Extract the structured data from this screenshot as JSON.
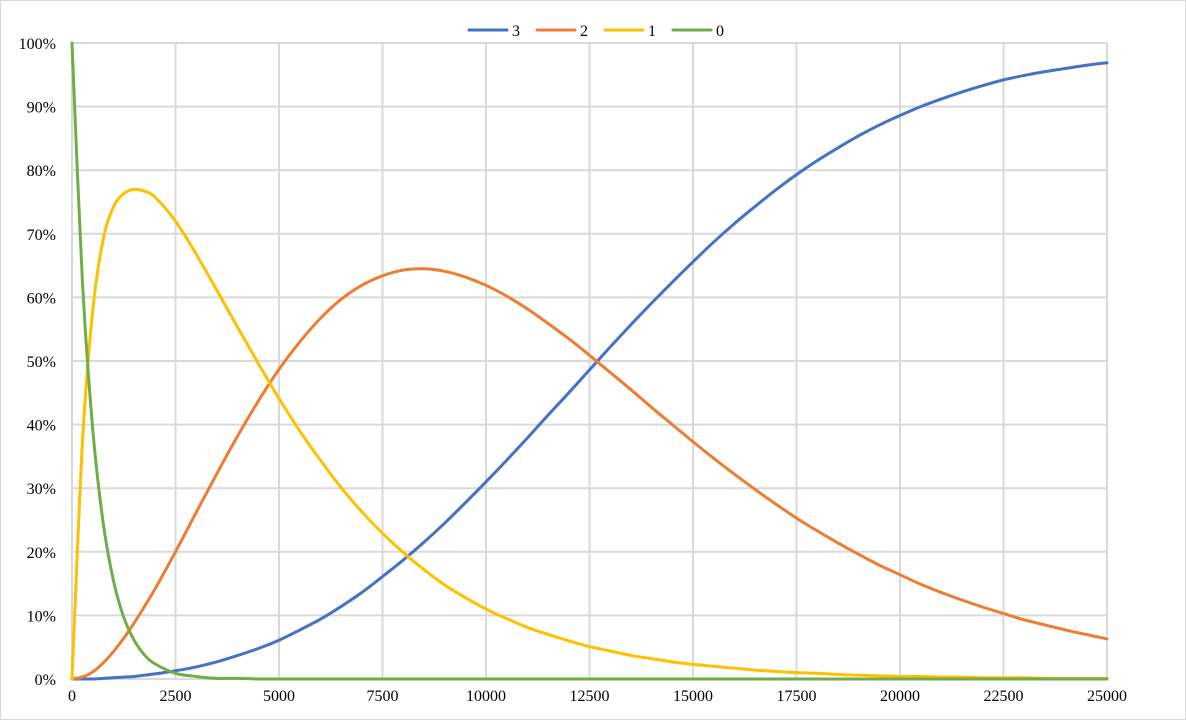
{
  "chart_data": {
    "type": "line",
    "title": "",
    "xlabel": "",
    "ylabel": "",
    "xlim": [
      0,
      25000
    ],
    "ylim": [
      0,
      1
    ],
    "x_ticks": [
      "0",
      "2500",
      "5000",
      "7500",
      "10000",
      "12500",
      "15000",
      "17500",
      "20000",
      "22500",
      "25000"
    ],
    "y_ticks": [
      "0%",
      "10%",
      "20%",
      "30%",
      "40%",
      "50%",
      "60%",
      "70%",
      "80%",
      "90%",
      "100%"
    ],
    "grid": true,
    "legend_position": "top-center",
    "x": [
      0,
      250,
      500,
      750,
      1000,
      1250,
      1500,
      1750,
      2000,
      2500,
      3000,
      3500,
      4000,
      4500,
      5000,
      5500,
      6000,
      6500,
      7000,
      7500,
      8000,
      8500,
      9000,
      9500,
      10000,
      10500,
      11000,
      11500,
      12000,
      12500,
      13000,
      13500,
      14000,
      14500,
      15000,
      15500,
      16000,
      16500,
      17000,
      17500,
      18000,
      18500,
      19000,
      19500,
      20000,
      20500,
      21000,
      21500,
      22000,
      22500,
      23000,
      23500,
      24000,
      24500,
      25000
    ],
    "series": [
      {
        "name": "3",
        "color": "#4472c4",
        "values": [
          0.0,
          0.0,
          0.0,
          0.001,
          0.002,
          0.003,
          0.004,
          0.006,
          0.008,
          0.013,
          0.019,
          0.027,
          0.037,
          0.048,
          0.061,
          0.077,
          0.094,
          0.114,
          0.136,
          0.161,
          0.187,
          0.215,
          0.245,
          0.277,
          0.31,
          0.344,
          0.379,
          0.415,
          0.45,
          0.486,
          0.522,
          0.557,
          0.591,
          0.624,
          0.656,
          0.687,
          0.716,
          0.743,
          0.769,
          0.793,
          0.815,
          0.835,
          0.854,
          0.871,
          0.886,
          0.9,
          0.912,
          0.923,
          0.933,
          0.942,
          0.949,
          0.955,
          0.96,
          0.965,
          0.969
        ]
      },
      {
        "name": "2",
        "color": "#ed7d31",
        "values": [
          0.0,
          0.003,
          0.011,
          0.025,
          0.043,
          0.064,
          0.088,
          0.114,
          0.141,
          0.2,
          0.262,
          0.323,
          0.382,
          0.437,
          0.487,
          0.53,
          0.567,
          0.597,
          0.619,
          0.634,
          0.643,
          0.645,
          0.641,
          0.632,
          0.619,
          0.602,
          0.582,
          0.559,
          0.535,
          0.509,
          0.482,
          0.455,
          0.427,
          0.4,
          0.373,
          0.347,
          0.322,
          0.298,
          0.275,
          0.253,
          0.233,
          0.214,
          0.196,
          0.179,
          0.164,
          0.149,
          0.136,
          0.124,
          0.113,
          0.103,
          0.093,
          0.085,
          0.077,
          0.07,
          0.063
        ]
      },
      {
        "name": "1",
        "color": "#ffc000",
        "values": [
          0.0,
          0.369,
          0.579,
          0.69,
          0.742,
          0.763,
          0.77,
          0.767,
          0.758,
          0.72,
          0.668,
          0.611,
          0.553,
          0.496,
          0.441,
          0.39,
          0.344,
          0.301,
          0.263,
          0.229,
          0.199,
          0.172,
          0.148,
          0.128,
          0.11,
          0.095,
          0.081,
          0.07,
          0.06,
          0.051,
          0.044,
          0.037,
          0.032,
          0.027,
          0.023,
          0.02,
          0.017,
          0.014,
          0.012,
          0.01,
          0.009,
          0.007,
          0.006,
          0.005,
          0.004,
          0.004,
          0.003,
          0.003,
          0.002,
          0.002,
          0.002,
          0.001,
          0.001,
          0.001,
          0.001
        ]
      },
      {
        "name": "0",
        "color": "#70ad47",
        "values": [
          1.0,
          0.627,
          0.393,
          0.247,
          0.155,
          0.097,
          0.061,
          0.038,
          0.024,
          0.009,
          0.004,
          0.001,
          0.001,
          0.0,
          0.0,
          0.0,
          0.0,
          0.0,
          0.0,
          0.0,
          0.0,
          0.0,
          0.0,
          0.0,
          0.0,
          0.0,
          0.0,
          0.0,
          0.0,
          0.0,
          0.0,
          0.0,
          0.0,
          0.0,
          0.0,
          0.0,
          0.0,
          0.0,
          0.0,
          0.0,
          0.0,
          0.0,
          0.0,
          0.0,
          0.0,
          0.0,
          0.0,
          0.0,
          0.0,
          0.0,
          0.0,
          0.0,
          0.0,
          0.0,
          0.0
        ]
      }
    ]
  }
}
